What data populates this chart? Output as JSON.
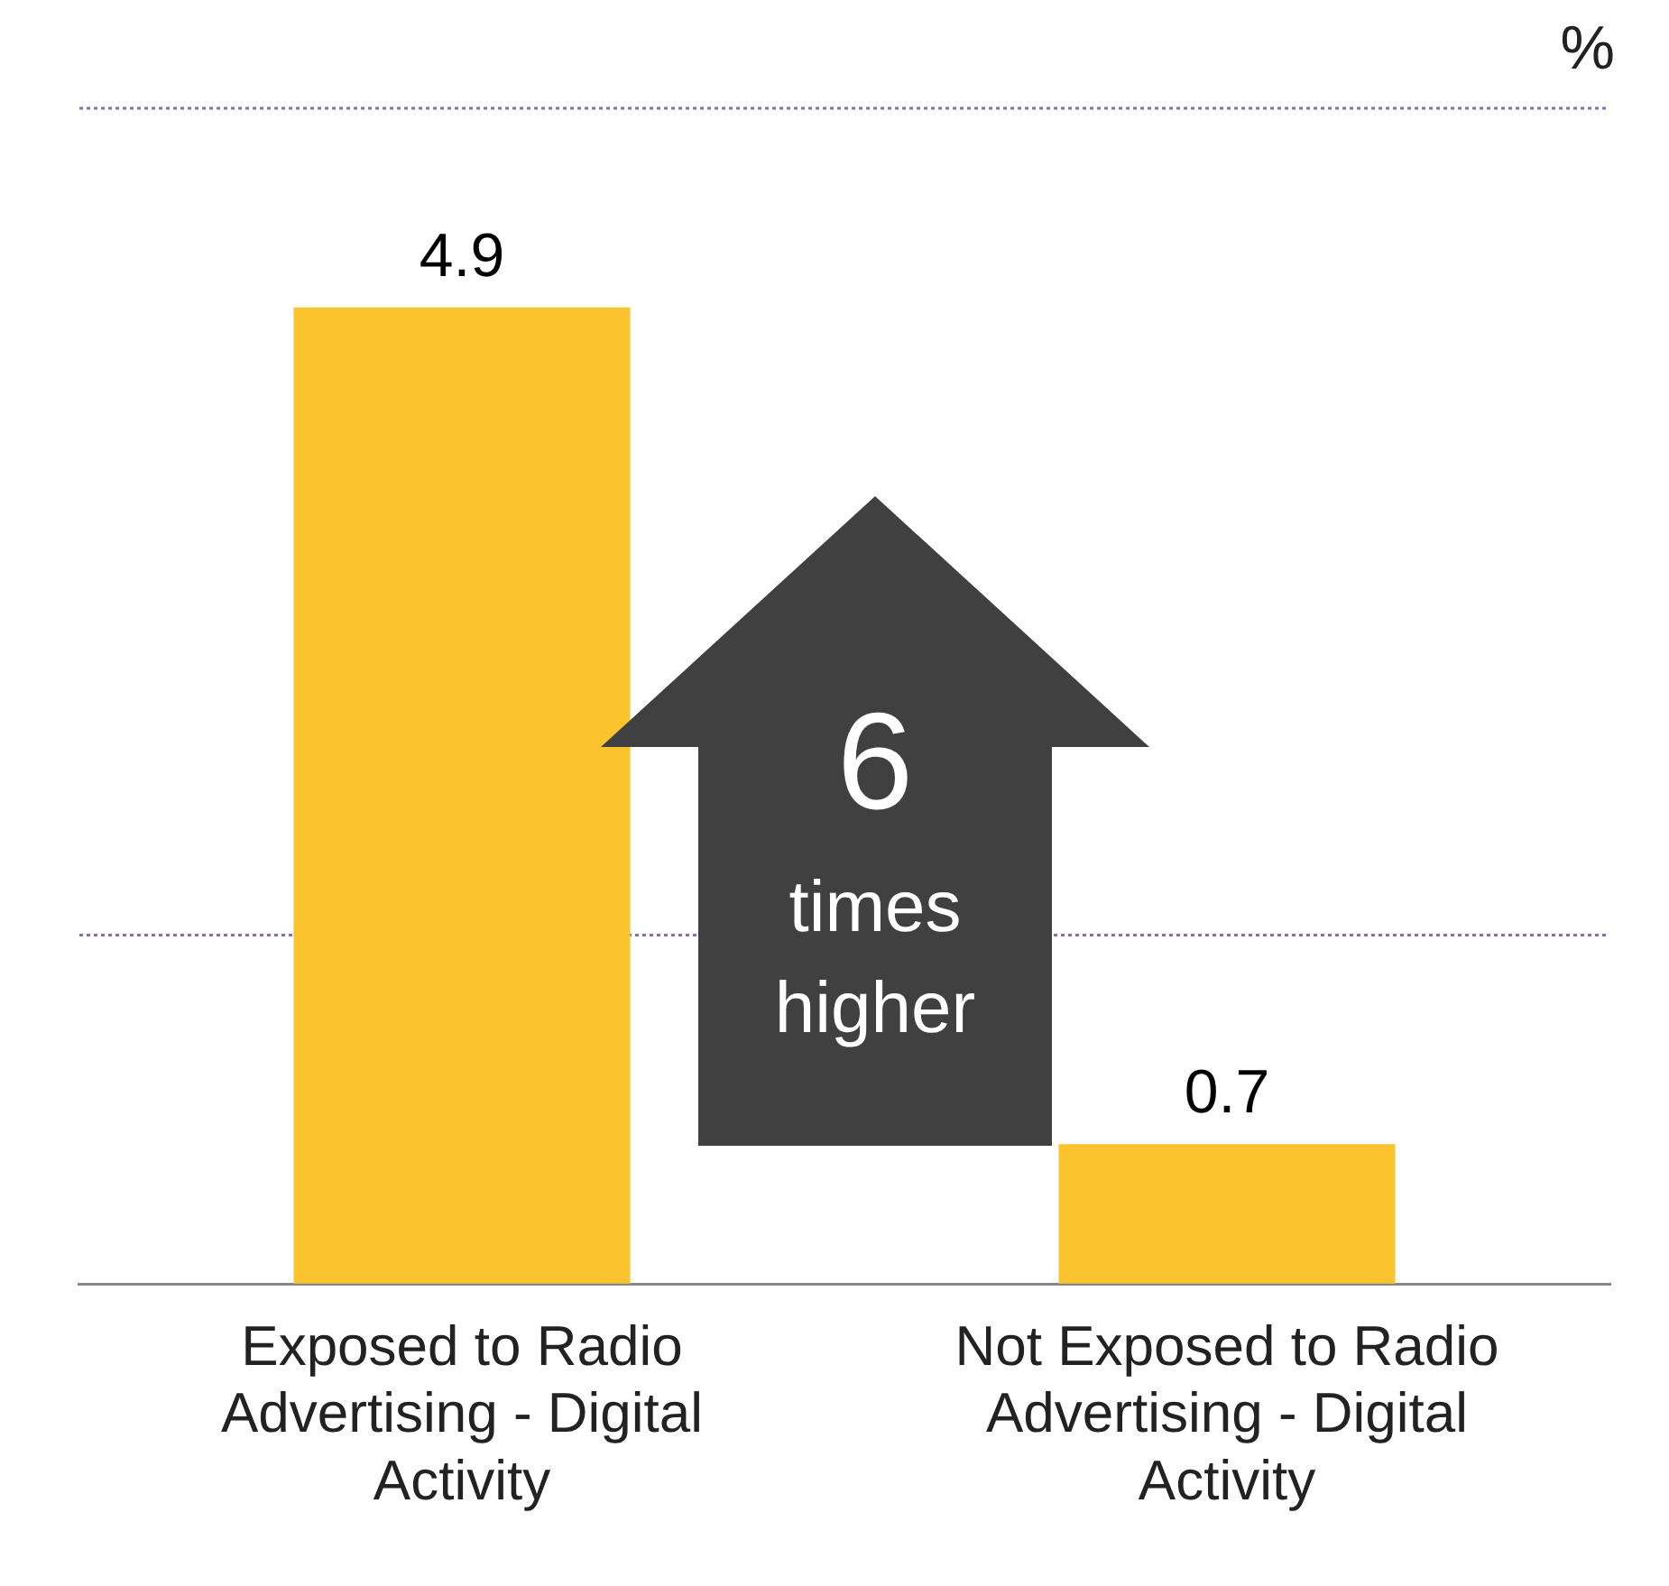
{
  "chart_data": {
    "type": "bar",
    "ylabel": "%",
    "categories": [
      "Exposed to Radio Advertising - Digital Activity",
      "Not Exposed to Radio Advertising - Digital Activity"
    ],
    "values": [
      4.9,
      0.7
    ],
    "color": "#fbc42e",
    "ref_lines": [
      {
        "axis": "y",
        "value": 1.75,
        "color": "#8a6fb0",
        "line_style": "dotted"
      },
      {
        "axis": "y",
        "value": 5.9,
        "color": "#8a6fb0",
        "line_style": "dotted"
      }
    ],
    "tick_labels": "x",
    "data_labels": true,
    "annotations": [
      "6",
      "times higher"
    ]
  }
}
